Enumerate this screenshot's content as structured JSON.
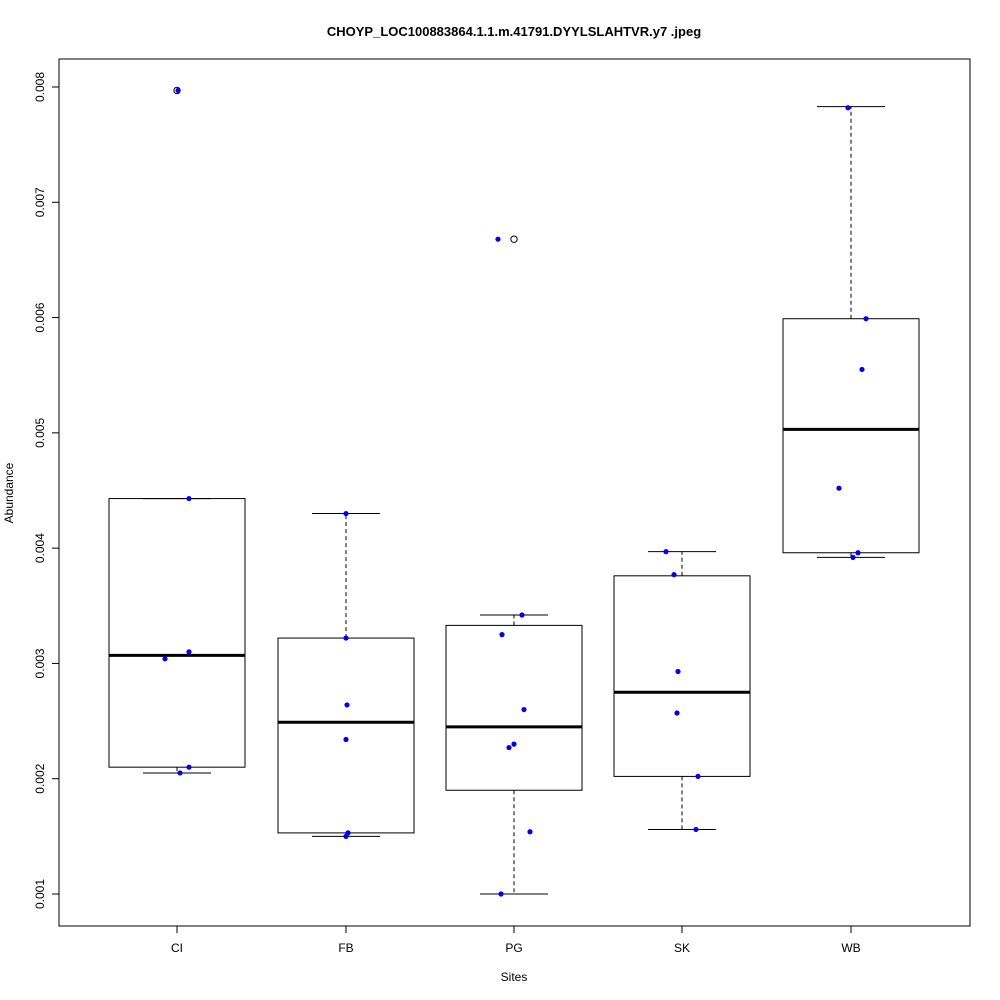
{
  "chart_data": {
    "type": "boxplot",
    "title": "CHOYP_LOC100883864.1.1.m.41791.DYYLSLAHTVR.y7 .jpeg",
    "xlabel": "Sites",
    "ylabel": "Abundance",
    "ylim": [
      0.00079,
      0.00811
    ],
    "yticks": [
      "0.001",
      "0.002",
      "0.003",
      "0.004",
      "0.005",
      "0.006",
      "0.007",
      "0.008"
    ],
    "categories": [
      "CI",
      "FB",
      "PG",
      "SK",
      "WB"
    ],
    "boxes": [
      {
        "name": "CI",
        "whisker_low": 0.00205,
        "q1": 0.0021,
        "median": 0.00307,
        "q3": 0.00443,
        "whisker_high": 0.00443,
        "outliers": [
          0.00797
        ]
      },
      {
        "name": "FB",
        "whisker_low": 0.0015,
        "q1": 0.00153,
        "median": 0.00249,
        "q3": 0.00322,
        "whisker_high": 0.0043,
        "outliers": []
      },
      {
        "name": "PG",
        "whisker_low": 0.001,
        "q1": 0.0019,
        "median": 0.00245,
        "q3": 0.00333,
        "whisker_high": 0.00342,
        "outliers": [
          0.00668
        ]
      },
      {
        "name": "SK",
        "whisker_low": 0.00156,
        "q1": 0.00202,
        "median": 0.00275,
        "q3": 0.00376,
        "whisker_high": 0.00397,
        "outliers": []
      },
      {
        "name": "WB",
        "whisker_low": 0.00392,
        "q1": 0.00396,
        "median": 0.00503,
        "q3": 0.00599,
        "whisker_high": 0.00783,
        "outliers": []
      }
    ],
    "points": [
      [
        0.00797,
        0.00443,
        0.0031,
        0.00304,
        0.0021,
        0.00205
      ],
      [
        0.0043,
        0.00322,
        0.00264,
        0.00234,
        0.00153,
        0.0015
      ],
      [
        0.00668,
        0.00342,
        0.00325,
        0.0026,
        0.0023,
        0.00227,
        0.00154,
        0.001
      ],
      [
        0.00397,
        0.00377,
        0.00293,
        0.00257,
        0.00202,
        0.00156
      ],
      [
        0.00782,
        0.00599,
        0.00555,
        0.00452,
        0.00396,
        0.00392
      ]
    ],
    "point_color": "#0000ee"
  }
}
